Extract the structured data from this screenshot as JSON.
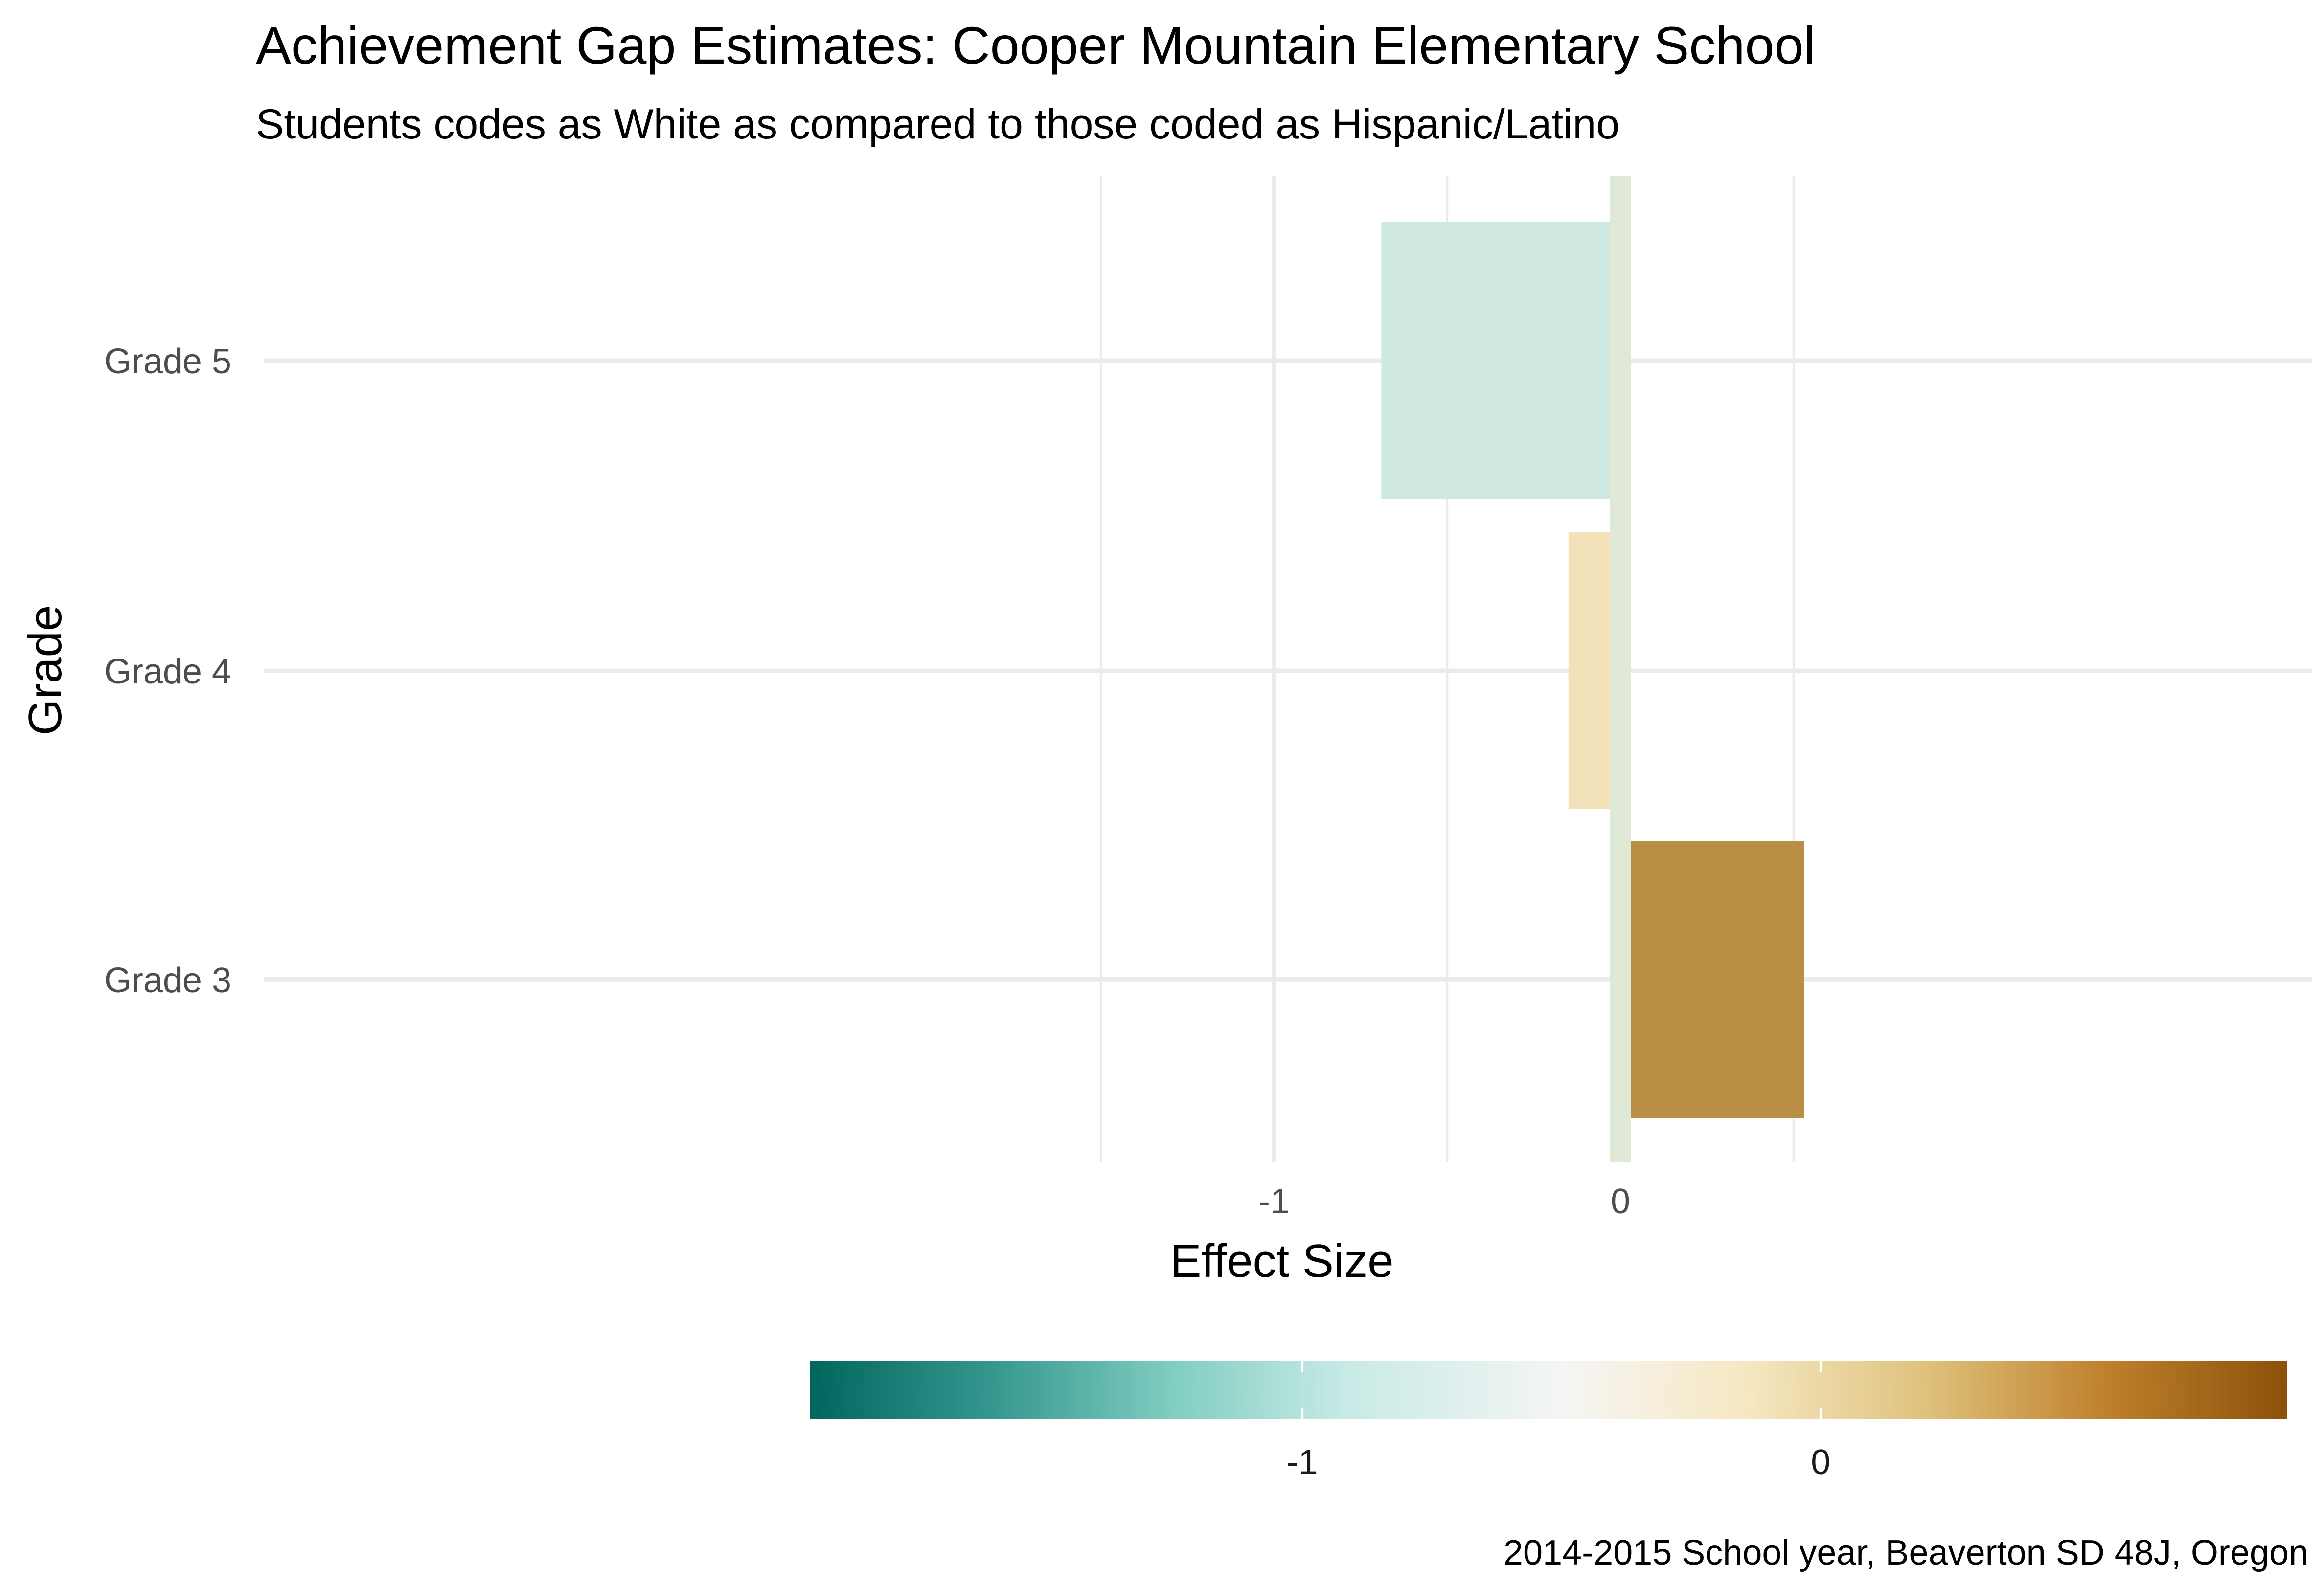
{
  "chart_data": {
    "type": "bar",
    "orientation": "horizontal",
    "title": "Achievement Gap Estimates: Cooper Mountain Elementary School",
    "subtitle": "Students codes as White as compared to those coded as Hispanic/Latino",
    "caption": "2014-2015 School year, Beaverton SD 48J, Oregon",
    "xlabel": "Effect Size",
    "ylabel": "Grade",
    "categories": [
      "Grade 3",
      "Grade 4",
      "Grade 5"
    ],
    "values": [
      0.53,
      -0.15,
      -0.69
    ],
    "x_ticks": [
      -1,
      0
    ],
    "xlim": [
      -1.5,
      1.0
    ],
    "zero_line_color": "#dfe9d6",
    "grid": true,
    "bar_colors": [
      "#bb8e45",
      "#f3e1ba",
      "#cfe9e2"
    ],
    "legend": {
      "type": "colorbar",
      "placement": "bottom",
      "range": [
        -1.95,
        0.9
      ],
      "ticks": [
        -1,
        0
      ],
      "colors": [
        "#01665e",
        "#35978f",
        "#80cdc1",
        "#c7eae5",
        "#f5f5f5",
        "#f6e8c3",
        "#dfc27d",
        "#bf812d",
        "#8c510a"
      ],
      "stops": [
        -1.95,
        -1.6,
        -1.25,
        -0.92,
        -0.5,
        -0.15,
        0.2,
        0.55,
        0.9
      ]
    }
  }
}
